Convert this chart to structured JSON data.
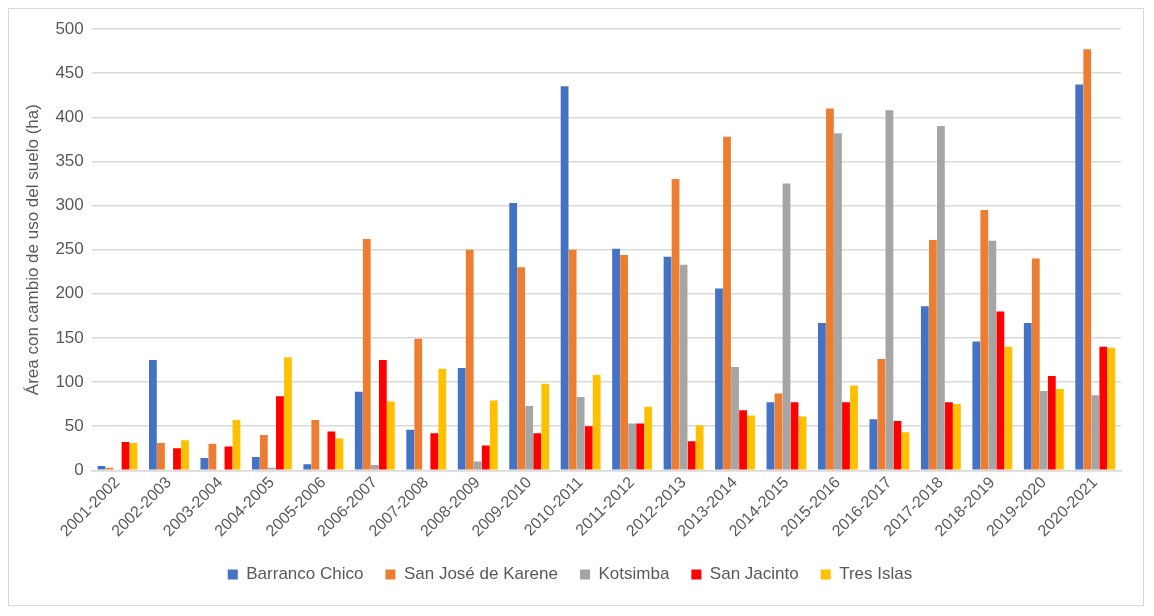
{
  "chart_data": {
    "type": "bar",
    "ylabel": "Área con cambio de uso del suelo (ha)",
    "categories": [
      "2001-2002",
      "2002-2003",
      "2003-2004",
      "2004-2005",
      "2005-2006",
      "2006-2007",
      "2007-2008",
      "2008-2009",
      "2009-2010",
      "2010-2011",
      "2011-2012",
      "2012-2013",
      "2013-2014",
      "2014-2015",
      "2015-2016",
      "2016-2017",
      "2017-2018",
      "2018-2019",
      "2019-2020",
      "2020-2021"
    ],
    "series": [
      {
        "name": "Barranco Chico",
        "color": "#4472c4",
        "values": [
          5,
          125,
          14,
          15,
          7,
          89,
          46,
          116,
          303,
          435,
          251,
          242,
          206,
          77,
          167,
          58,
          186,
          146,
          167,
          437
        ]
      },
      {
        "name": "San José de Karene",
        "color": "#ed7d31",
        "values": [
          3,
          31,
          30,
          40,
          57,
          262,
          149,
          250,
          230,
          250,
          244,
          330,
          378,
          87,
          410,
          126,
          261,
          295,
          240,
          477
        ]
      },
      {
        "name": "Kotsimba",
        "color": "#a5a5a5",
        "values": [
          null,
          0,
          null,
          3,
          null,
          6,
          null,
          10,
          73,
          83,
          53,
          233,
          117,
          325,
          382,
          408,
          390,
          260,
          90,
          85
        ]
      },
      {
        "name": "San Jacinto",
        "color": "#ff0000",
        "values": [
          32,
          25,
          27,
          84,
          44,
          125,
          42,
          28,
          42,
          50,
          53,
          33,
          68,
          77,
          77,
          56,
          77,
          180,
          107,
          140
        ]
      },
      {
        "name": "Tres Islas",
        "color": "#ffc000",
        "values": [
          31,
          34,
          57,
          128,
          36,
          78,
          115,
          79,
          98,
          108,
          72,
          51,
          62,
          61,
          96,
          43,
          75,
          140,
          92,
          139
        ]
      }
    ],
    "ylim": [
      0,
      500
    ],
    "yticks": [
      0,
      50,
      100,
      150,
      200,
      250,
      300,
      350,
      400,
      450,
      500
    ],
    "grid": "y",
    "legend": "bottom"
  }
}
